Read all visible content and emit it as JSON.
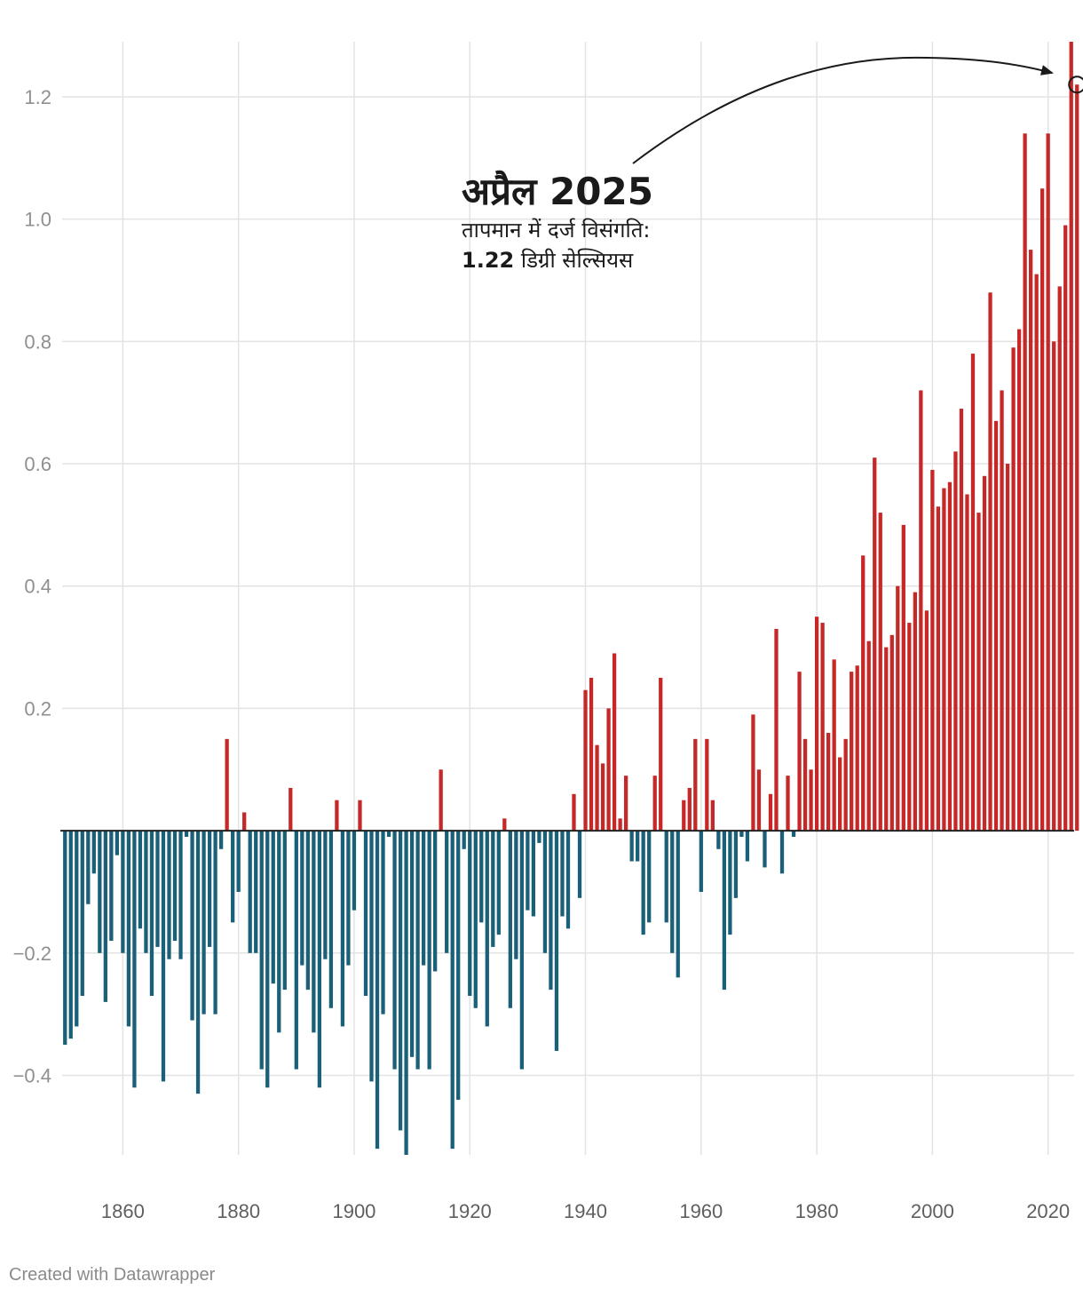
{
  "chart_data": {
    "type": "bar",
    "title": "",
    "xlabel": "",
    "ylabel": "",
    "ylim": [
      -0.53,
      1.29
    ],
    "xlim": [
      1850,
      2025
    ],
    "grid": true,
    "y_ticks": [
      -0.4,
      -0.2,
      0.2,
      0.4,
      0.6,
      0.8,
      1.0,
      1.2
    ],
    "y_tick_labels": [
      "−0.4",
      "−0.2",
      "0.2",
      "0.4",
      "0.6",
      "0.8",
      "1.0",
      "1.2"
    ],
    "x_ticks": [
      1860,
      1880,
      1900,
      1920,
      1940,
      1960,
      1980,
      2000,
      2020
    ],
    "x_tick_labels": [
      "1860",
      "1880",
      "1900",
      "1920",
      "1940",
      "1960",
      "1980",
      "2000",
      "2020"
    ],
    "positive_color": "#c62828",
    "negative_color": "#1a6078",
    "x_start": 1850,
    "values": [
      -0.35,
      -0.34,
      -0.32,
      -0.27,
      -0.12,
      -0.07,
      -0.2,
      -0.28,
      -0.18,
      -0.04,
      -0.2,
      -0.32,
      -0.42,
      -0.16,
      -0.2,
      -0.27,
      -0.19,
      -0.41,
      -0.21,
      -0.18,
      -0.21,
      -0.01,
      -0.31,
      -0.43,
      -0.3,
      -0.19,
      -0.3,
      -0.03,
      0.15,
      -0.15,
      -0.1,
      0.03,
      -0.2,
      -0.2,
      -0.39,
      -0.42,
      -0.25,
      -0.33,
      -0.26,
      0.07,
      -0.39,
      -0.22,
      -0.26,
      -0.33,
      -0.42,
      -0.21,
      -0.29,
      0.05,
      -0.32,
      -0.22,
      -0.13,
      0.05,
      -0.27,
      -0.41,
      -0.52,
      -0.3,
      -0.01,
      -0.39,
      -0.49,
      -0.53,
      -0.37,
      -0.39,
      -0.22,
      -0.39,
      -0.23,
      0.1,
      -0.2,
      -0.52,
      -0.44,
      -0.03,
      -0.27,
      -0.29,
      -0.15,
      -0.32,
      -0.19,
      -0.17,
      0.02,
      -0.29,
      -0.21,
      -0.39,
      -0.13,
      -0.14,
      -0.02,
      -0.2,
      -0.26,
      -0.36,
      -0.14,
      -0.16,
      0.06,
      -0.11,
      0.23,
      0.25,
      0.14,
      0.11,
      0.2,
      0.29,
      0.02,
      0.09,
      -0.05,
      -0.05,
      -0.17,
      -0.15,
      0.09,
      0.25,
      -0.15,
      -0.2,
      -0.24,
      0.05,
      0.07,
      0.15,
      -0.1,
      0.15,
      0.05,
      -0.03,
      -0.26,
      -0.17,
      -0.11,
      -0.01,
      -0.05,
      0.19,
      0.1,
      -0.06,
      0.06,
      0.33,
      -0.07,
      0.09,
      -0.01,
      0.26,
      0.15,
      0.1,
      0.35,
      0.34,
      0.16,
      0.28,
      0.12,
      0.15,
      0.26,
      0.27,
      0.45,
      0.31,
      0.61,
      0.52,
      0.3,
      0.32,
      0.4,
      0.5,
      0.34,
      0.39,
      0.72,
      0.36,
      0.59,
      0.53,
      0.56,
      0.57,
      0.62,
      0.69,
      0.55,
      0.78,
      0.52,
      0.58,
      0.88,
      0.67,
      0.72,
      0.6,
      0.79,
      0.82,
      1.14,
      0.95,
      0.91,
      1.05,
      1.14,
      0.8,
      0.89,
      0.99,
      1.29,
      1.22
    ],
    "highlight": {
      "year": 2025,
      "value": 1.22,
      "title": "अप्रैल 2025",
      "line1": "तापमान में दर्ज विसंगति:",
      "value_text": "1.22",
      "unit_text": "डिग्री सेल्सियस"
    }
  },
  "footer": {
    "credit": "Created with Datawrapper"
  }
}
